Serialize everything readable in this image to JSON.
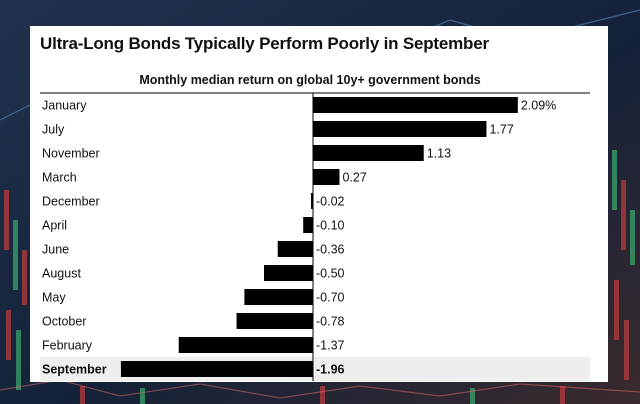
{
  "chart_data": {
    "type": "bar",
    "orientation": "horizontal",
    "title": "Ultra-Long Bonds Typically Perform Poorly in September",
    "subtitle": "Monthly median return on global 10y+ government bonds",
    "categories": [
      "January",
      "July",
      "November",
      "March",
      "December",
      "April",
      "June",
      "August",
      "May",
      "October",
      "February",
      "September"
    ],
    "values": [
      2.09,
      1.77,
      1.13,
      0.27,
      -0.02,
      -0.1,
      -0.36,
      -0.5,
      -0.7,
      -0.78,
      -1.37,
      -1.96
    ],
    "value_labels": [
      "2.09%",
      "1.77",
      "1.13",
      "0.27",
      "-0.02",
      "-0.10",
      "-0.36",
      "-0.50",
      "-0.70",
      "-0.78",
      "-1.37",
      "-1.96"
    ],
    "highlight": "September",
    "xlim": [
      -1.96,
      2.09
    ],
    "grid": false,
    "legend": "none",
    "colors": {
      "bar": "#000000",
      "highlight_row": "#eeeeee",
      "baseline": "#000000"
    }
  }
}
